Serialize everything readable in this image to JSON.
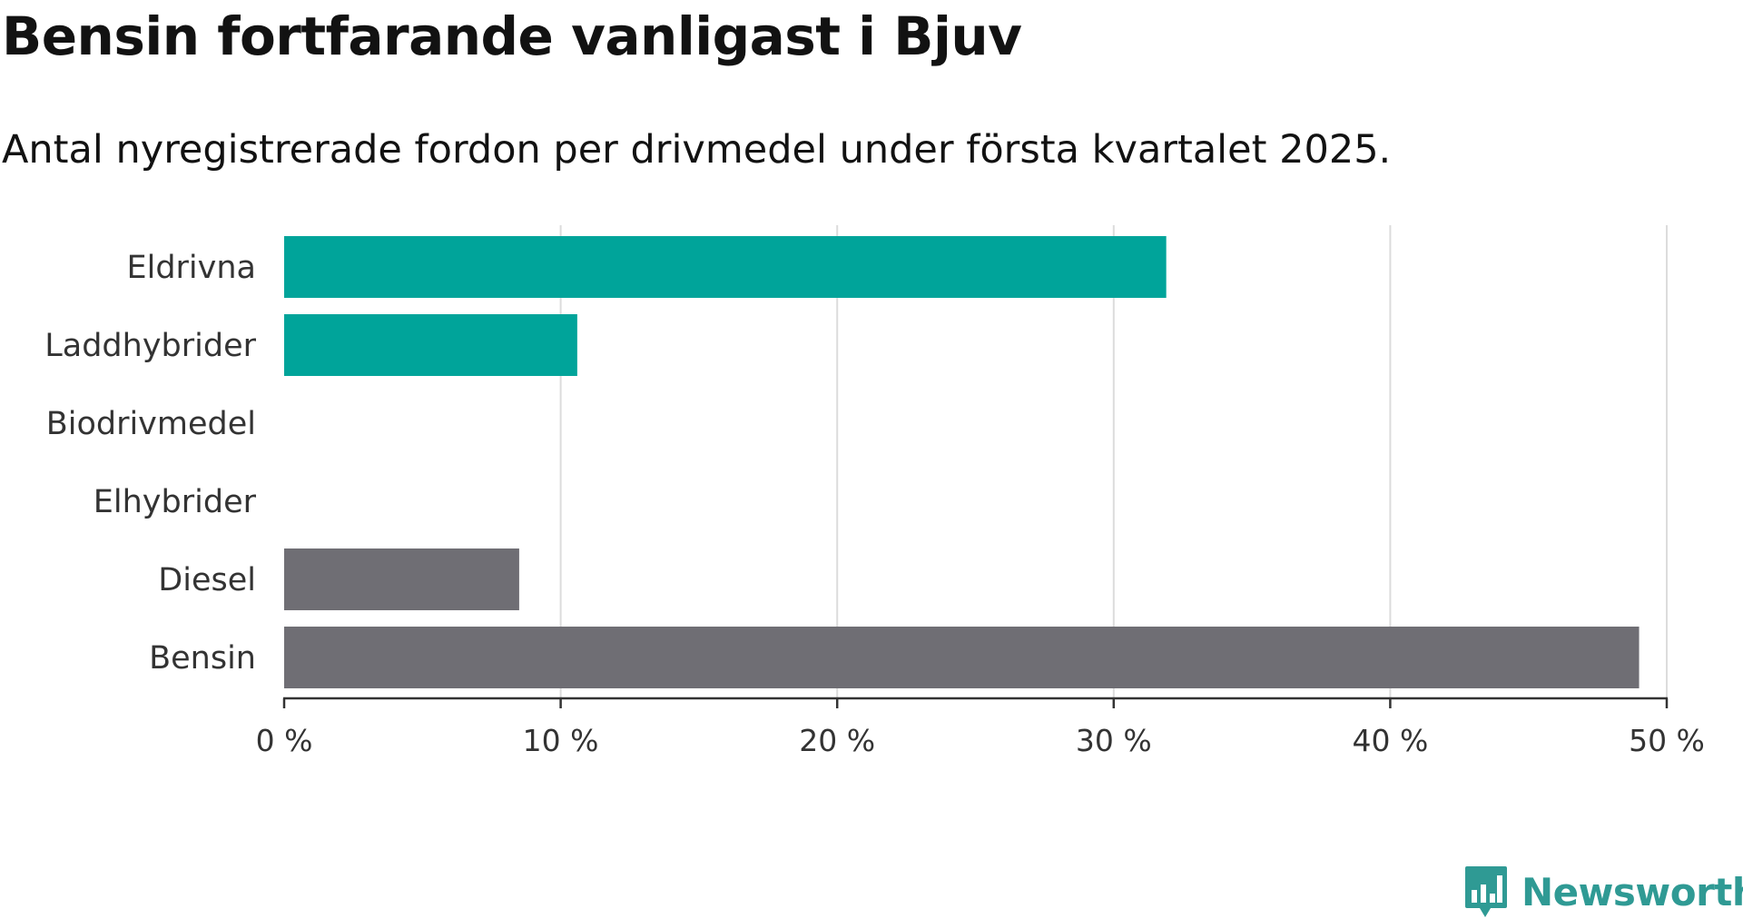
{
  "title": "Bensin fortfarande vanligast i Bjuv",
  "subtitle": "Antal nyregistrerade fordon per drivmedel under första kvartalet 2025.",
  "brand": {
    "name": "Newsworthy",
    "color": "#2f9a94",
    "icon": "newsworthy-logo-icon"
  },
  "colors": {
    "highlight": "#00a49a",
    "default": "#6f6e74",
    "grid": "#dcdcdc",
    "axis": "#333333"
  },
  "chart_data": {
    "type": "bar",
    "orientation": "horizontal",
    "categories": [
      "Eldrivna",
      "Laddhybrider",
      "Biodrivmedel",
      "Elhybrider",
      "Diesel",
      "Bensin"
    ],
    "values": [
      31.9,
      10.6,
      0,
      0,
      8.5,
      49.0
    ],
    "series_colors": [
      "highlight",
      "highlight",
      "highlight",
      "highlight",
      "default",
      "default"
    ],
    "xlim": [
      0,
      50
    ],
    "xticks": [
      0,
      10,
      20,
      30,
      40,
      50
    ],
    "xtick_labels": [
      "0 %",
      "10 %",
      "20 %",
      "30 %",
      "40 %",
      "50 %"
    ],
    "xlabel": "",
    "ylabel": "",
    "grid": "vertical"
  }
}
